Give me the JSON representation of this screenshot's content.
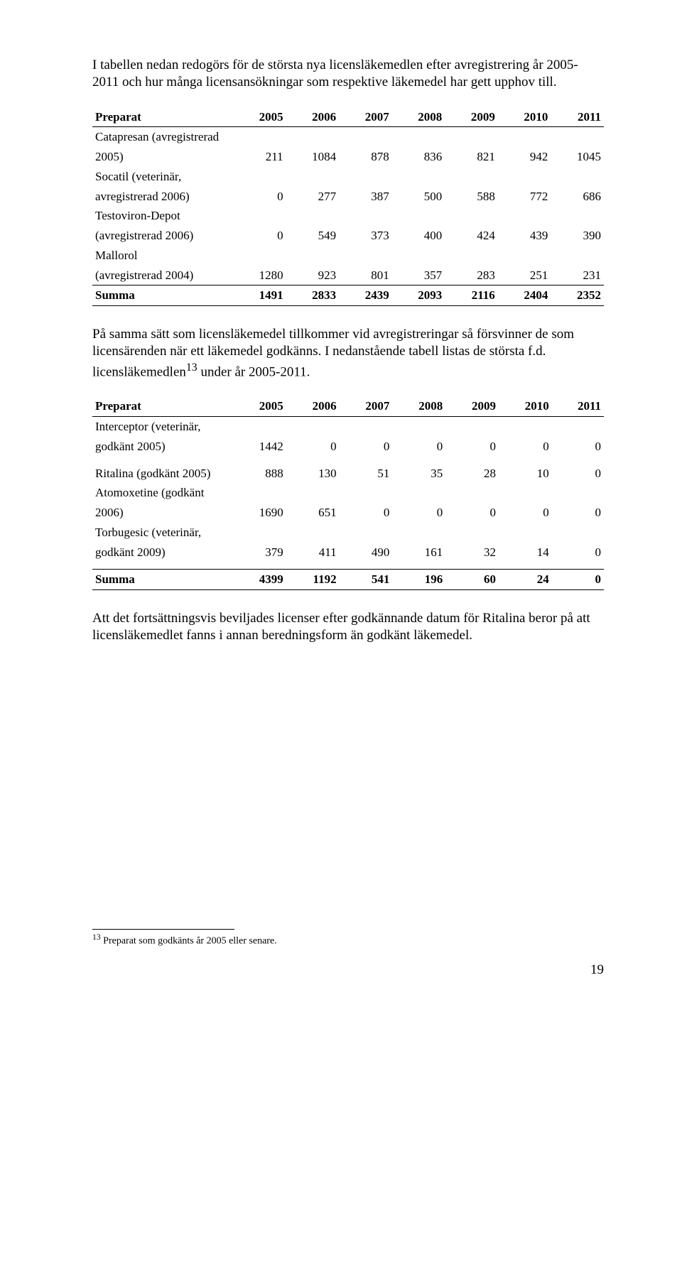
{
  "intro1": "I tabellen nedan redogörs för de största nya licensläkemedlen efter avregistrering år 2005-2011 och hur många licensansökningar som respektive läkemedel har gett upphov till.",
  "table1": {
    "header_label": "Preparat",
    "years": [
      "2005",
      "2006",
      "2007",
      "2008",
      "2009",
      "2010",
      "2011"
    ],
    "rows": [
      {
        "label1": "Catapresan (avregistrerad",
        "label2": "2005)",
        "cells": [
          "211",
          "1084",
          "878",
          "836",
          "821",
          "942",
          "1045"
        ]
      },
      {
        "label1": "Socatil (veterinär,",
        "label2": "avregistrerad 2006)",
        "cells": [
          "0",
          "277",
          "387",
          "500",
          "588",
          "772",
          "686"
        ]
      },
      {
        "label1": "Testoviron-Depot",
        "label2": "(avregistrerad 2006)",
        "cells": [
          "0",
          "549",
          "373",
          "400",
          "424",
          "439",
          "390"
        ]
      },
      {
        "label1": "Mallorol",
        "label2": "(avregistrerad 2004)",
        "cells": [
          "1280",
          "923",
          "801",
          "357",
          "283",
          "251",
          "231"
        ]
      }
    ],
    "sum_label": "Summa",
    "sum_cells": [
      "1491",
      "2833",
      "2439",
      "2093",
      "2116",
      "2404",
      "2352"
    ]
  },
  "intro2_a": "På samma sätt som licensläkemedel tillkommer vid avregistreringar så försvinner de som licensärenden när ett läkemedel godkänns. I nedanstående tabell listas de största f.d. licensläkemedlen",
  "intro2_sup": "13",
  "intro2_b": " under år 2005-2011.",
  "table2": {
    "header_label": "Preparat",
    "years": [
      "2005",
      "2006",
      "2007",
      "2008",
      "2009",
      "2010",
      "2011"
    ],
    "rows": [
      {
        "label1": "Interceptor (veterinär,",
        "label2": "godkänt 2005)",
        "cells": [
          "1442",
          "0",
          "0",
          "0",
          "0",
          "0",
          "0"
        ]
      },
      {
        "label1": "",
        "label2": "Ritalina (godkänt 2005)",
        "cells": [
          "888",
          "130",
          "51",
          "35",
          "28",
          "10",
          "0"
        ]
      },
      {
        "label1": "Atomoxetine (godkänt",
        "label2": "2006)",
        "cells": [
          "1690",
          "651",
          "0",
          "0",
          "0",
          "0",
          "0"
        ]
      },
      {
        "label1": "Torbugesic (veterinär,",
        "label2": "godkänt 2009)",
        "cells": [
          "379",
          "411",
          "490",
          "161",
          "32",
          "14",
          "0"
        ]
      }
    ],
    "sum_label": "Summa",
    "sum_cells": [
      "4399",
      "1192",
      "541",
      "196",
      "60",
      "24",
      "0"
    ]
  },
  "closing": "Att det fortsättningsvis beviljades licenser efter godkännande datum för Ritalina beror på att licensläkemedlet fanns i annan beredningsform än godkänt läkemedel.",
  "footnote_sup": "13",
  "footnote_text": " Preparat som godkänts år 2005 eller senare.",
  "pagenum": "19"
}
